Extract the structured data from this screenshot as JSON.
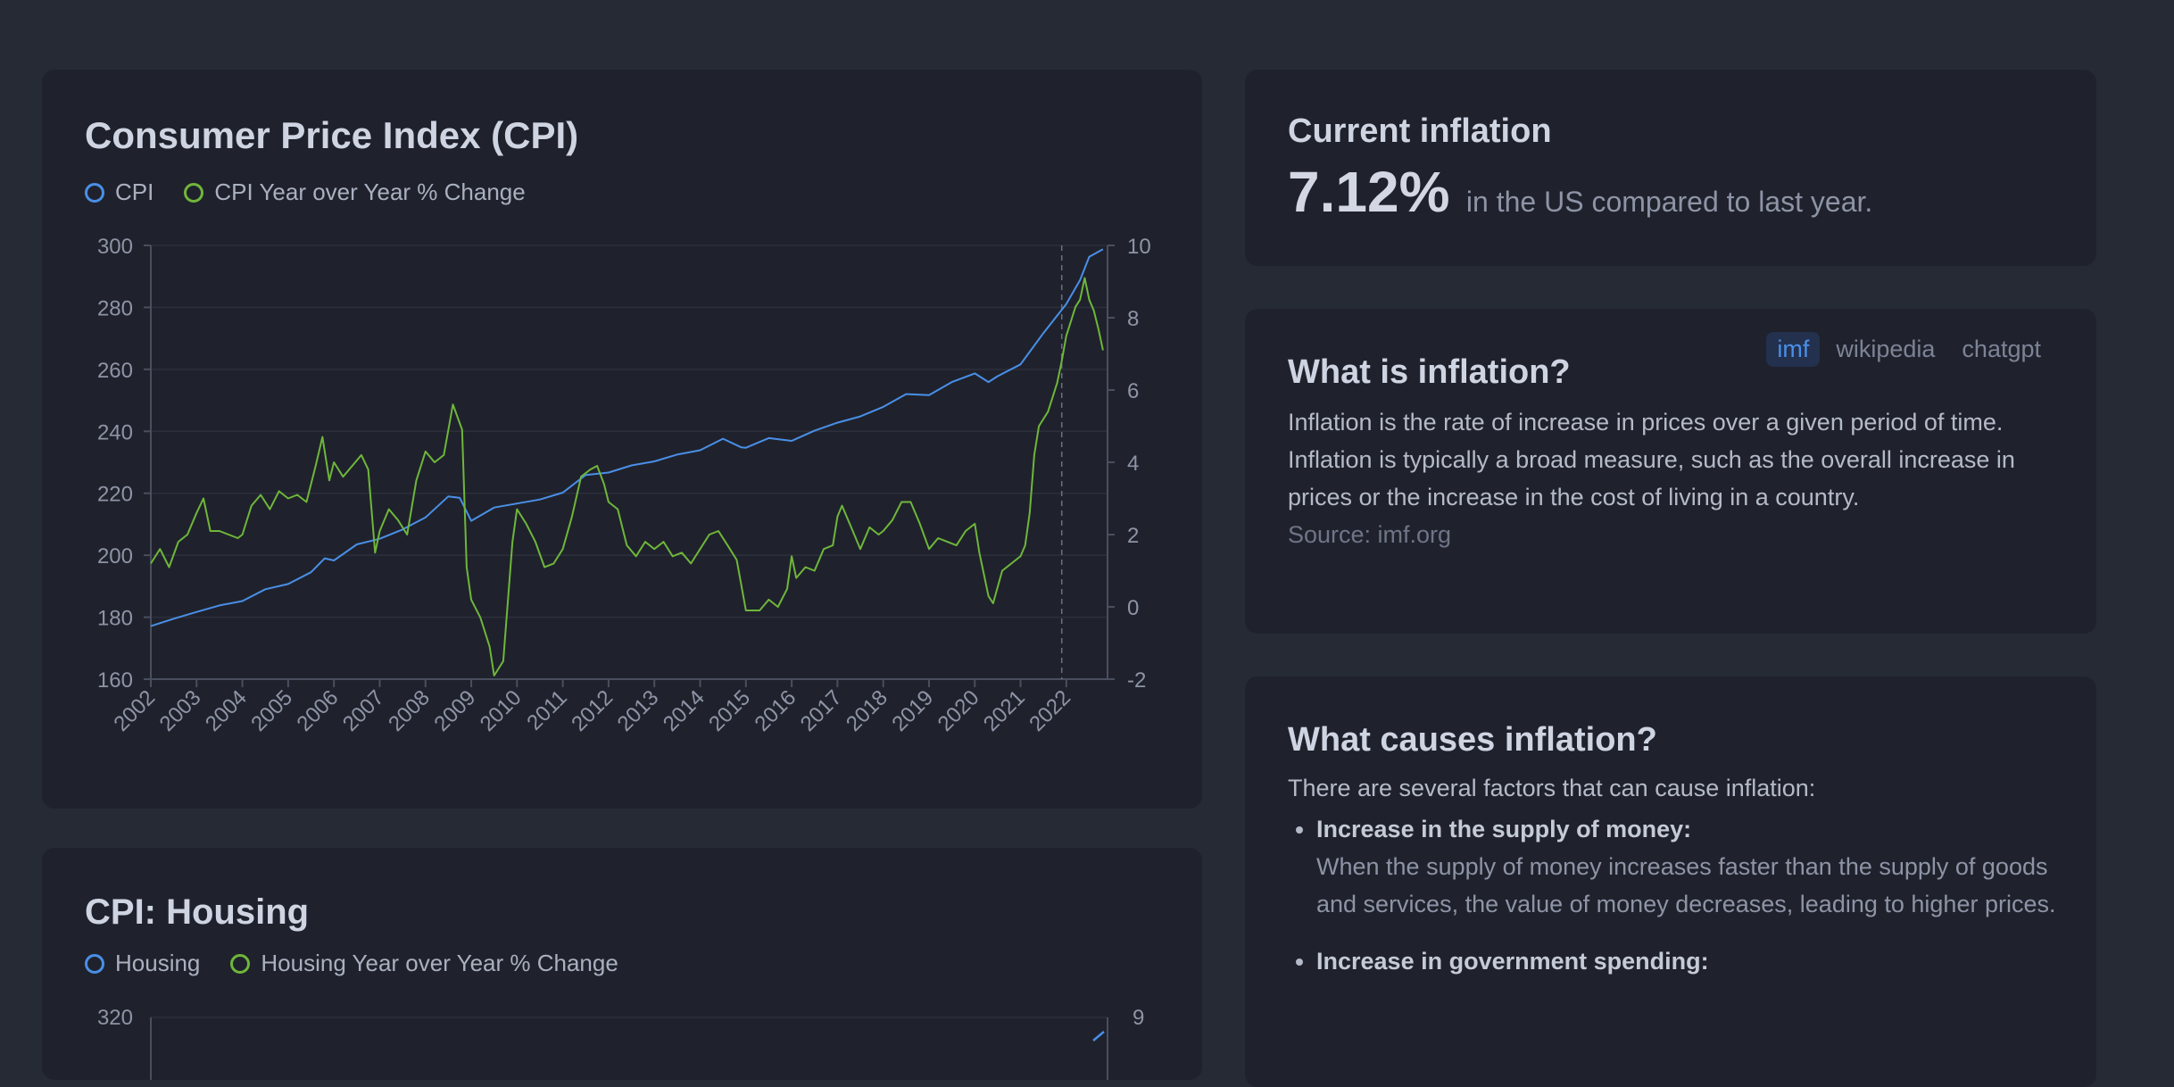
{
  "cpi_card": {
    "title": "Consumer Price Index (CPI)",
    "legend": [
      "CPI",
      "CPI Year over Year % Change"
    ]
  },
  "housing_card": {
    "title": "CPI: Housing",
    "legend": [
      "Housing",
      "Housing Year over Year % Change"
    ],
    "y_left_top_tick": "320",
    "y_right_top_tick": "9"
  },
  "current": {
    "title": "Current inflation",
    "value": "7.12%",
    "text": "in the US compared to last year."
  },
  "what": {
    "title": "What is inflation?",
    "sources": [
      "imf",
      "wikipedia",
      "chatgpt"
    ],
    "active_source": "imf",
    "body": "Inflation is the rate of increase in prices over a given period of time. Inflation is typically a broad measure, such as the overall increase in prices or the increase in the cost of living in a country.",
    "source_line": "Source: imf.org"
  },
  "causes": {
    "title": "What causes inflation?",
    "intro": "There are several factors that can cause inflation:",
    "items": [
      {
        "label": "Increase in the supply of money:",
        "desc": "When the supply of money increases faster than the supply of goods and services, the value of money decreases, leading to higher prices."
      },
      {
        "label": "Increase in government spending:",
        "desc": ""
      }
    ]
  },
  "colors": {
    "cpi": "#4a8fe7",
    "yoy": "#6fb63b"
  },
  "chart_data": [
    {
      "type": "line",
      "title": "Consumer Price Index (CPI)",
      "x_tick_labels": [
        "2002",
        "2003",
        "2004",
        "2005",
        "2006",
        "2007",
        "2008",
        "2009",
        "2010",
        "2011",
        "2012",
        "2013",
        "2014",
        "2015",
        "2016",
        "2017",
        "2018",
        "2019",
        "2020",
        "2021",
        "2022"
      ],
      "y_left": {
        "ticks": [
          160,
          180,
          200,
          220,
          240,
          260,
          280,
          300
        ],
        "ylim": [
          160,
          300
        ]
      },
      "y_right": {
        "ticks": [
          -2,
          0,
          2,
          4,
          6,
          8,
          10
        ],
        "ylim": [
          -2,
          10
        ]
      },
      "series": [
        {
          "name": "CPI",
          "axis": "left",
          "x": [
            2002.0,
            2002.5,
            2003.0,
            2003.5,
            2004.0,
            2004.5,
            2005.0,
            2005.5,
            2005.8,
            2006.0,
            2006.5,
            2007.0,
            2007.5,
            2008.0,
            2008.5,
            2008.75,
            2009.0,
            2009.5,
            2010.0,
            2010.5,
            2011.0,
            2011.5,
            2012.0,
            2012.5,
            2013.0,
            2013.5,
            2014.0,
            2014.5,
            2014.9,
            2015.0,
            2015.5,
            2016.0,
            2016.5,
            2017.0,
            2017.5,
            2018.0,
            2018.5,
            2019.0,
            2019.5,
            2020.0,
            2020.3,
            2020.5,
            2021.0,
            2021.5,
            2022.0,
            2022.3,
            2022.5,
            2022.8
          ],
          "values": [
            177.1,
            179.5,
            181.7,
            183.8,
            185.2,
            189.0,
            190.7,
            194.5,
            199.0,
            198.3,
            203.5,
            205.3,
            208.3,
            212.2,
            219.0,
            218.5,
            211.1,
            215.4,
            216.7,
            218.0,
            220.2,
            225.9,
            226.7,
            229.0,
            230.3,
            232.5,
            233.9,
            237.6,
            234.8,
            234.7,
            237.8,
            236.9,
            240.2,
            242.8,
            244.8,
            247.9,
            252.0,
            251.7,
            255.9,
            258.7,
            255.9,
            257.8,
            261.6,
            271.7,
            281.1,
            288.8,
            296.3,
            298.8
          ]
        },
        {
          "name": "CPI Year over Year % Change",
          "axis": "right",
          "x": [
            2002.0,
            2002.2,
            2002.4,
            2002.6,
            2002.8,
            2003.0,
            2003.15,
            2003.3,
            2003.5,
            2003.7,
            2003.9,
            2004.0,
            2004.2,
            2004.4,
            2004.6,
            2004.8,
            2005.0,
            2005.2,
            2005.4,
            2005.6,
            2005.75,
            2005.9,
            2006.0,
            2006.2,
            2006.4,
            2006.6,
            2006.75,
            2006.9,
            2007.0,
            2007.2,
            2007.4,
            2007.6,
            2007.8,
            2008.0,
            2008.2,
            2008.4,
            2008.5,
            2008.6,
            2008.8,
            2008.9,
            2009.0,
            2009.2,
            2009.4,
            2009.5,
            2009.7,
            2009.9,
            2010.0,
            2010.2,
            2010.4,
            2010.6,
            2010.8,
            2011.0,
            2011.2,
            2011.4,
            2011.6,
            2011.75,
            2011.9,
            2012.0,
            2012.2,
            2012.4,
            2012.6,
            2012.8,
            2013.0,
            2013.2,
            2013.4,
            2013.6,
            2013.8,
            2014.0,
            2014.2,
            2014.4,
            2014.6,
            2014.8,
            2015.0,
            2015.1,
            2015.3,
            2015.5,
            2015.7,
            2015.9,
            2016.0,
            2016.1,
            2016.3,
            2016.5,
            2016.7,
            2016.9,
            2017.0,
            2017.1,
            2017.3,
            2017.5,
            2017.7,
            2017.9,
            2018.0,
            2018.2,
            2018.4,
            2018.6,
            2018.8,
            2019.0,
            2019.2,
            2019.4,
            2019.6,
            2019.8,
            2020.0,
            2020.1,
            2020.3,
            2020.4,
            2020.6,
            2020.8,
            2021.0,
            2021.1,
            2021.2,
            2021.3,
            2021.4,
            2021.6,
            2021.8,
            2021.9,
            2022.0,
            2022.2,
            2022.3,
            2022.4,
            2022.5,
            2022.6,
            2022.7,
            2022.8
          ],
          "values": [
            1.2,
            1.6,
            1.1,
            1.8,
            2.0,
            2.6,
            3.0,
            2.1,
            2.1,
            2.0,
            1.9,
            2.0,
            2.8,
            3.1,
            2.7,
            3.2,
            3.0,
            3.1,
            2.9,
            3.9,
            4.7,
            3.5,
            4.0,
            3.6,
            3.9,
            4.2,
            3.8,
            1.5,
            2.1,
            2.7,
            2.4,
            2.0,
            3.5,
            4.3,
            4.0,
            4.2,
            4.9,
            5.6,
            4.9,
            1.1,
            0.2,
            -0.3,
            -1.1,
            -1.9,
            -1.5,
            1.8,
            2.7,
            2.3,
            1.8,
            1.1,
            1.2,
            1.6,
            2.5,
            3.6,
            3.8,
            3.9,
            3.4,
            2.9,
            2.7,
            1.7,
            1.4,
            1.8,
            1.6,
            1.8,
            1.4,
            1.5,
            1.2,
            1.6,
            2.0,
            2.1,
            1.7,
            1.3,
            -0.1,
            -0.1,
            -0.1,
            0.2,
            0.0,
            0.5,
            1.4,
            0.8,
            1.1,
            1.0,
            1.6,
            1.7,
            2.5,
            2.8,
            2.2,
            1.6,
            2.2,
            2.0,
            2.1,
            2.4,
            2.9,
            2.9,
            2.3,
            1.6,
            1.9,
            1.8,
            1.7,
            2.1,
            2.3,
            1.5,
            0.3,
            0.1,
            1.0,
            1.2,
            1.4,
            1.7,
            2.6,
            4.2,
            5.0,
            5.4,
            6.2,
            6.8,
            7.5,
            8.3,
            8.5,
            9.1,
            8.5,
            8.2,
            7.7,
            7.1
          ]
        }
      ],
      "annotations": [
        {
          "type": "vertical-dashed-line",
          "x": 2021.9
        }
      ],
      "grid": true,
      "legend": "top-left"
    }
  ]
}
